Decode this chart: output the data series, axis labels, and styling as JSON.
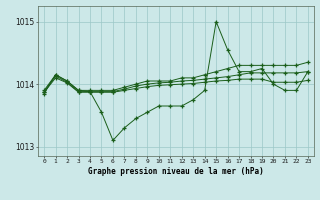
{
  "hours": [
    0,
    1,
    2,
    3,
    4,
    5,
    6,
    7,
    8,
    9,
    10,
    11,
    12,
    13,
    14,
    15,
    16,
    17,
    18,
    19,
    20,
    21,
    22,
    23
  ],
  "line1": [
    1013.85,
    1014.15,
    1014.05,
    1013.9,
    1013.88,
    1013.55,
    1013.1,
    1013.3,
    1013.45,
    1013.55,
    1013.65,
    1013.65,
    1013.65,
    1013.75,
    1013.9,
    1015.0,
    1014.55,
    1014.2,
    1014.2,
    1014.25,
    1014.0,
    1013.9,
    1013.9,
    1014.2
  ],
  "line2": [
    1013.9,
    1014.15,
    1014.05,
    1013.9,
    1013.9,
    1013.9,
    1013.9,
    1013.95,
    1014.0,
    1014.05,
    1014.05,
    1014.05,
    1014.1,
    1014.1,
    1014.15,
    1014.2,
    1014.25,
    1014.3,
    1014.3,
    1014.3,
    1014.3,
    1014.3,
    1014.3,
    1014.35
  ],
  "line3": [
    1013.88,
    1014.13,
    1014.03,
    1013.88,
    1013.88,
    1013.88,
    1013.88,
    1013.92,
    1013.97,
    1014.0,
    1014.02,
    1014.03,
    1014.05,
    1014.06,
    1014.08,
    1014.1,
    1014.12,
    1014.15,
    1014.18,
    1014.18,
    1014.18,
    1014.18,
    1014.18,
    1014.2
  ],
  "line4": [
    1013.87,
    1014.1,
    1014.02,
    1013.87,
    1013.87,
    1013.87,
    1013.87,
    1013.9,
    1013.93,
    1013.96,
    1013.98,
    1013.99,
    1014.0,
    1014.01,
    1014.03,
    1014.05,
    1014.06,
    1014.08,
    1014.08,
    1014.08,
    1014.03,
    1014.03,
    1014.03,
    1014.06
  ],
  "line_color": "#1a5e1a",
  "bg_color": "#cce8e8",
  "grid_color": "#9cc8c8",
  "title": "Graphe pression niveau de la mer (hPa)",
  "xlim": [
    -0.5,
    23.5
  ],
  "ylim": [
    1012.85,
    1015.25
  ],
  "yticks": [
    1013,
    1014,
    1015
  ],
  "xtick_labels": [
    "0",
    "1",
    "2",
    "3",
    "4",
    "5",
    "6",
    "7",
    "8",
    "9",
    "10",
    "11",
    "12",
    "13",
    "14",
    "15",
    "16",
    "17",
    "18",
    "19",
    "20",
    "21",
    "22",
    "23"
  ]
}
